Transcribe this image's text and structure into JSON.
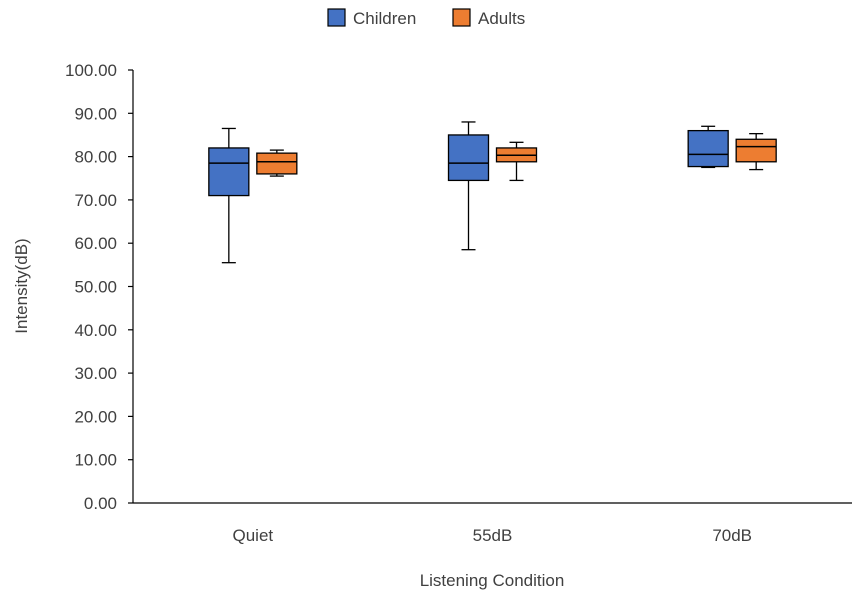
{
  "chart_data": {
    "type": "boxplot",
    "title": "",
    "xlabel": "Listening  Condition",
    "ylabel": "Intensity(dB)",
    "ylim": [
      0,
      100
    ],
    "y_ticks": [
      "0.00",
      "10.00",
      "20.00",
      "30.00",
      "40.00",
      "50.00",
      "60.00",
      "70.00",
      "80.00",
      "90.00",
      "100.00"
    ],
    "y_tick_values": [
      0,
      10,
      20,
      30,
      40,
      50,
      60,
      70,
      80,
      90,
      100
    ],
    "categories": [
      "Quiet",
      "55dB",
      "70dB"
    ],
    "legend_position": "top-center",
    "series": [
      {
        "name": "Children",
        "color": "#4472C4",
        "boxes": [
          {
            "min": 55.5,
            "q1": 71.0,
            "median": 78.5,
            "q3": 82.0,
            "max": 86.5
          },
          {
            "min": 58.5,
            "q1": 74.5,
            "median": 78.5,
            "q3": 85.0,
            "max": 88.0
          },
          {
            "min": 77.5,
            "q1": 77.7,
            "median": 80.5,
            "q3": 86.0,
            "max": 87.0
          }
        ]
      },
      {
        "name": "Adults",
        "color": "#ED7D31",
        "boxes": [
          {
            "min": 75.5,
            "q1": 76.0,
            "median": 78.8,
            "q3": 80.8,
            "max": 81.5
          },
          {
            "min": 74.5,
            "q1": 78.8,
            "median": 80.3,
            "q3": 82.0,
            "max": 83.3
          },
          {
            "min": 77.0,
            "q1": 78.8,
            "median": 82.3,
            "q3": 84.0,
            "max": 85.3
          }
        ]
      }
    ]
  }
}
